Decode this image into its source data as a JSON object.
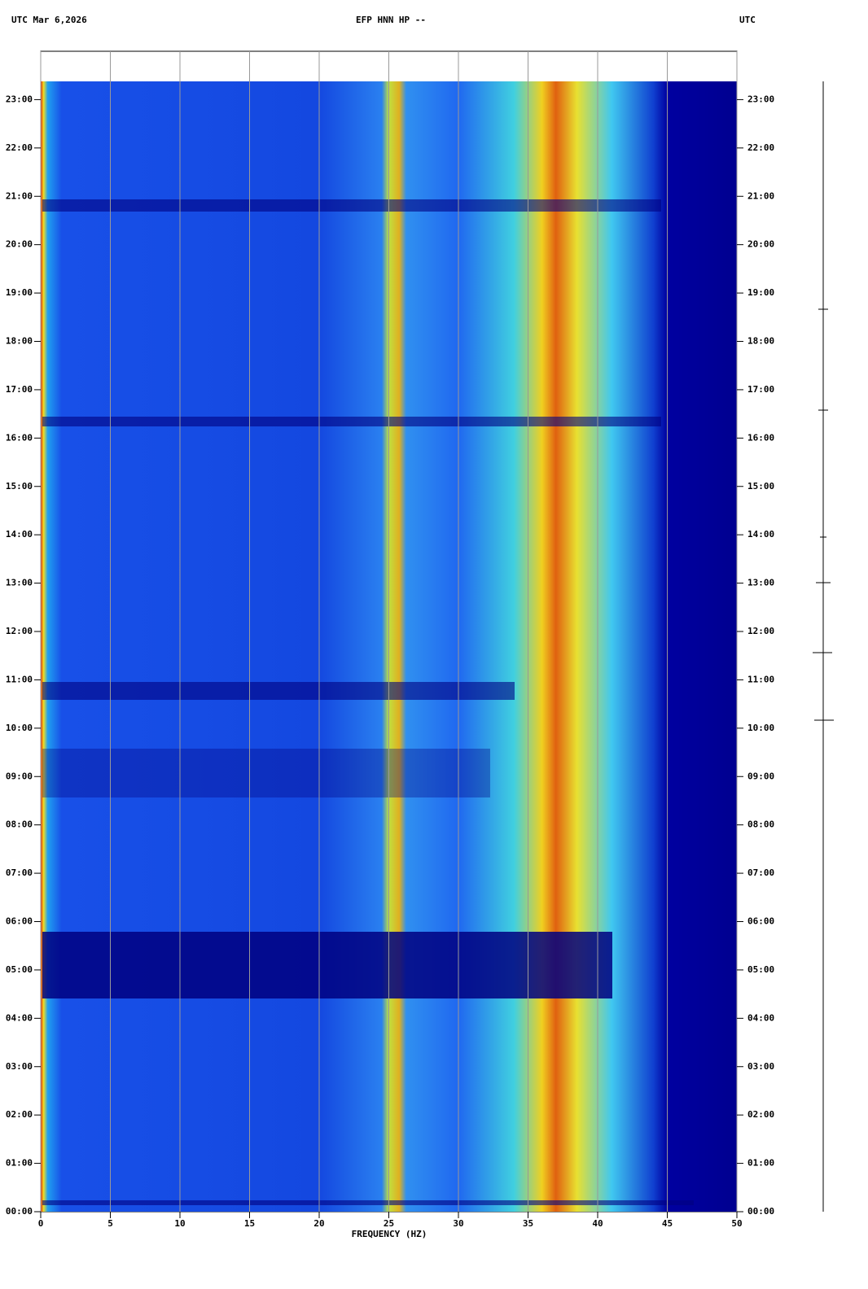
{
  "chart_data": {
    "type": "spectrogram",
    "title": "EFP HNN HP --",
    "date_label": "UTC  Mar 6,2026",
    "right_label": "UTC",
    "x_label": "FREQUENCY (HZ)",
    "xlim": [
      0,
      50
    ],
    "xticks": [
      0,
      5,
      10,
      15,
      20,
      25,
      30,
      35,
      40,
      45,
      50
    ],
    "ylim": [
      0,
      24
    ],
    "yticks": [
      {
        "value": 0,
        "label": "00:00"
      },
      {
        "value": 1,
        "label": "01:00"
      },
      {
        "value": 2,
        "label": "02:00"
      },
      {
        "value": 3,
        "label": "03:00"
      },
      {
        "value": 4,
        "label": "04:00"
      },
      {
        "value": 5,
        "label": "05:00"
      },
      {
        "value": 6,
        "label": "06:00"
      },
      {
        "value": 7,
        "label": "07:00"
      },
      {
        "value": 8,
        "label": "08:00"
      },
      {
        "value": 9,
        "label": "09:00"
      },
      {
        "value": 10,
        "label": "10:00"
      },
      {
        "value": 11,
        "label": "11:00"
      },
      {
        "value": 12,
        "label": "12:00"
      },
      {
        "value": 13,
        "label": "13:00"
      },
      {
        "value": 14,
        "label": "14:00"
      },
      {
        "value": 15,
        "label": "15:00"
      },
      {
        "value": 16,
        "label": "16:00"
      },
      {
        "value": 17,
        "label": "17:00"
      },
      {
        "value": 18,
        "label": "18:00"
      },
      {
        "value": 19,
        "label": "19:00"
      },
      {
        "value": 20,
        "label": "20:00"
      },
      {
        "value": 21,
        "label": "21:00"
      },
      {
        "value": 22,
        "label": "22:00"
      },
      {
        "value": 23,
        "label": "23:00"
      }
    ],
    "grid": "x",
    "grid_color": "#999999"
  }
}
